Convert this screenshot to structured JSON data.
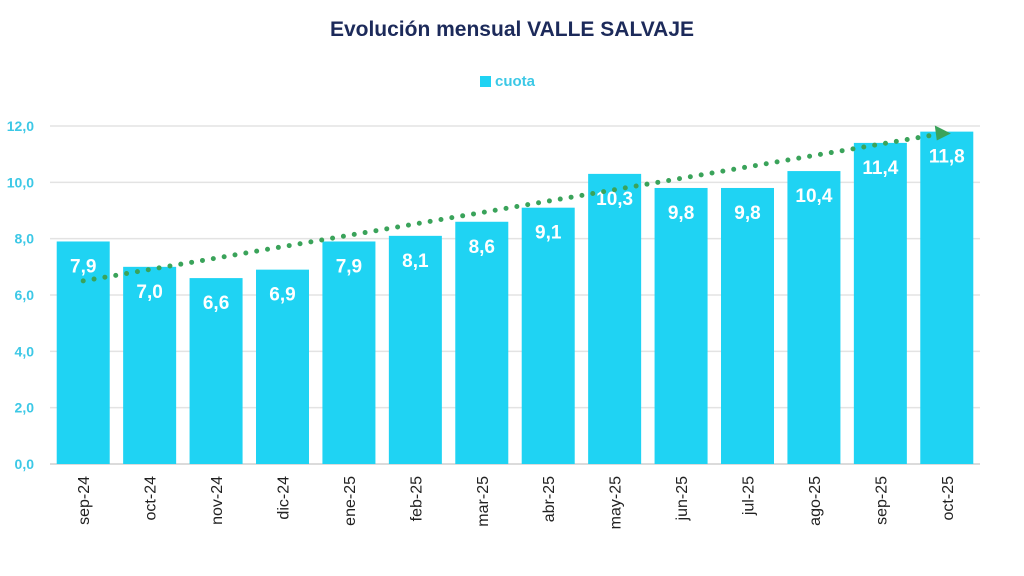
{
  "chart_data": {
    "type": "bar",
    "title": "Evolución mensual VALLE SALVAJE",
    "legend": {
      "label": "cuota",
      "placement": "top-center"
    },
    "categories": [
      "sep-24",
      "oct-24",
      "nov-24",
      "dic-24",
      "ene-25",
      "feb-25",
      "mar-25",
      "abr-25",
      "may-25",
      "jun-25",
      "jul-25",
      "ago-25",
      "sep-25",
      "oct-25"
    ],
    "series": [
      {
        "name": "cuota",
        "values": [
          7.9,
          7.0,
          6.6,
          6.9,
          7.9,
          8.1,
          8.6,
          9.1,
          10.3,
          9.8,
          9.8,
          10.4,
          11.4,
          11.8
        ]
      }
    ],
    "data_labels": [
      "7,9",
      "7,0",
      "6,6",
      "6,9",
      "7,9",
      "8,1",
      "8,6",
      "9,1",
      "10,3",
      "9,8",
      "9,8",
      "10,4",
      "11,4",
      "11,8"
    ],
    "yticks": [
      "0,0",
      "2,0",
      "4,0",
      "6,0",
      "8,0",
      "10,0",
      "12,0"
    ],
    "ylim": [
      0,
      12
    ],
    "grid": true,
    "trendline": {
      "type": "linear",
      "style": "dotted",
      "start": 6.5,
      "end": 11.7
    },
    "colors": {
      "bar": "#1fd3f3",
      "tick": "#3cc8e6",
      "title": "#1c2a5a",
      "trend": "#3aa35a"
    }
  }
}
